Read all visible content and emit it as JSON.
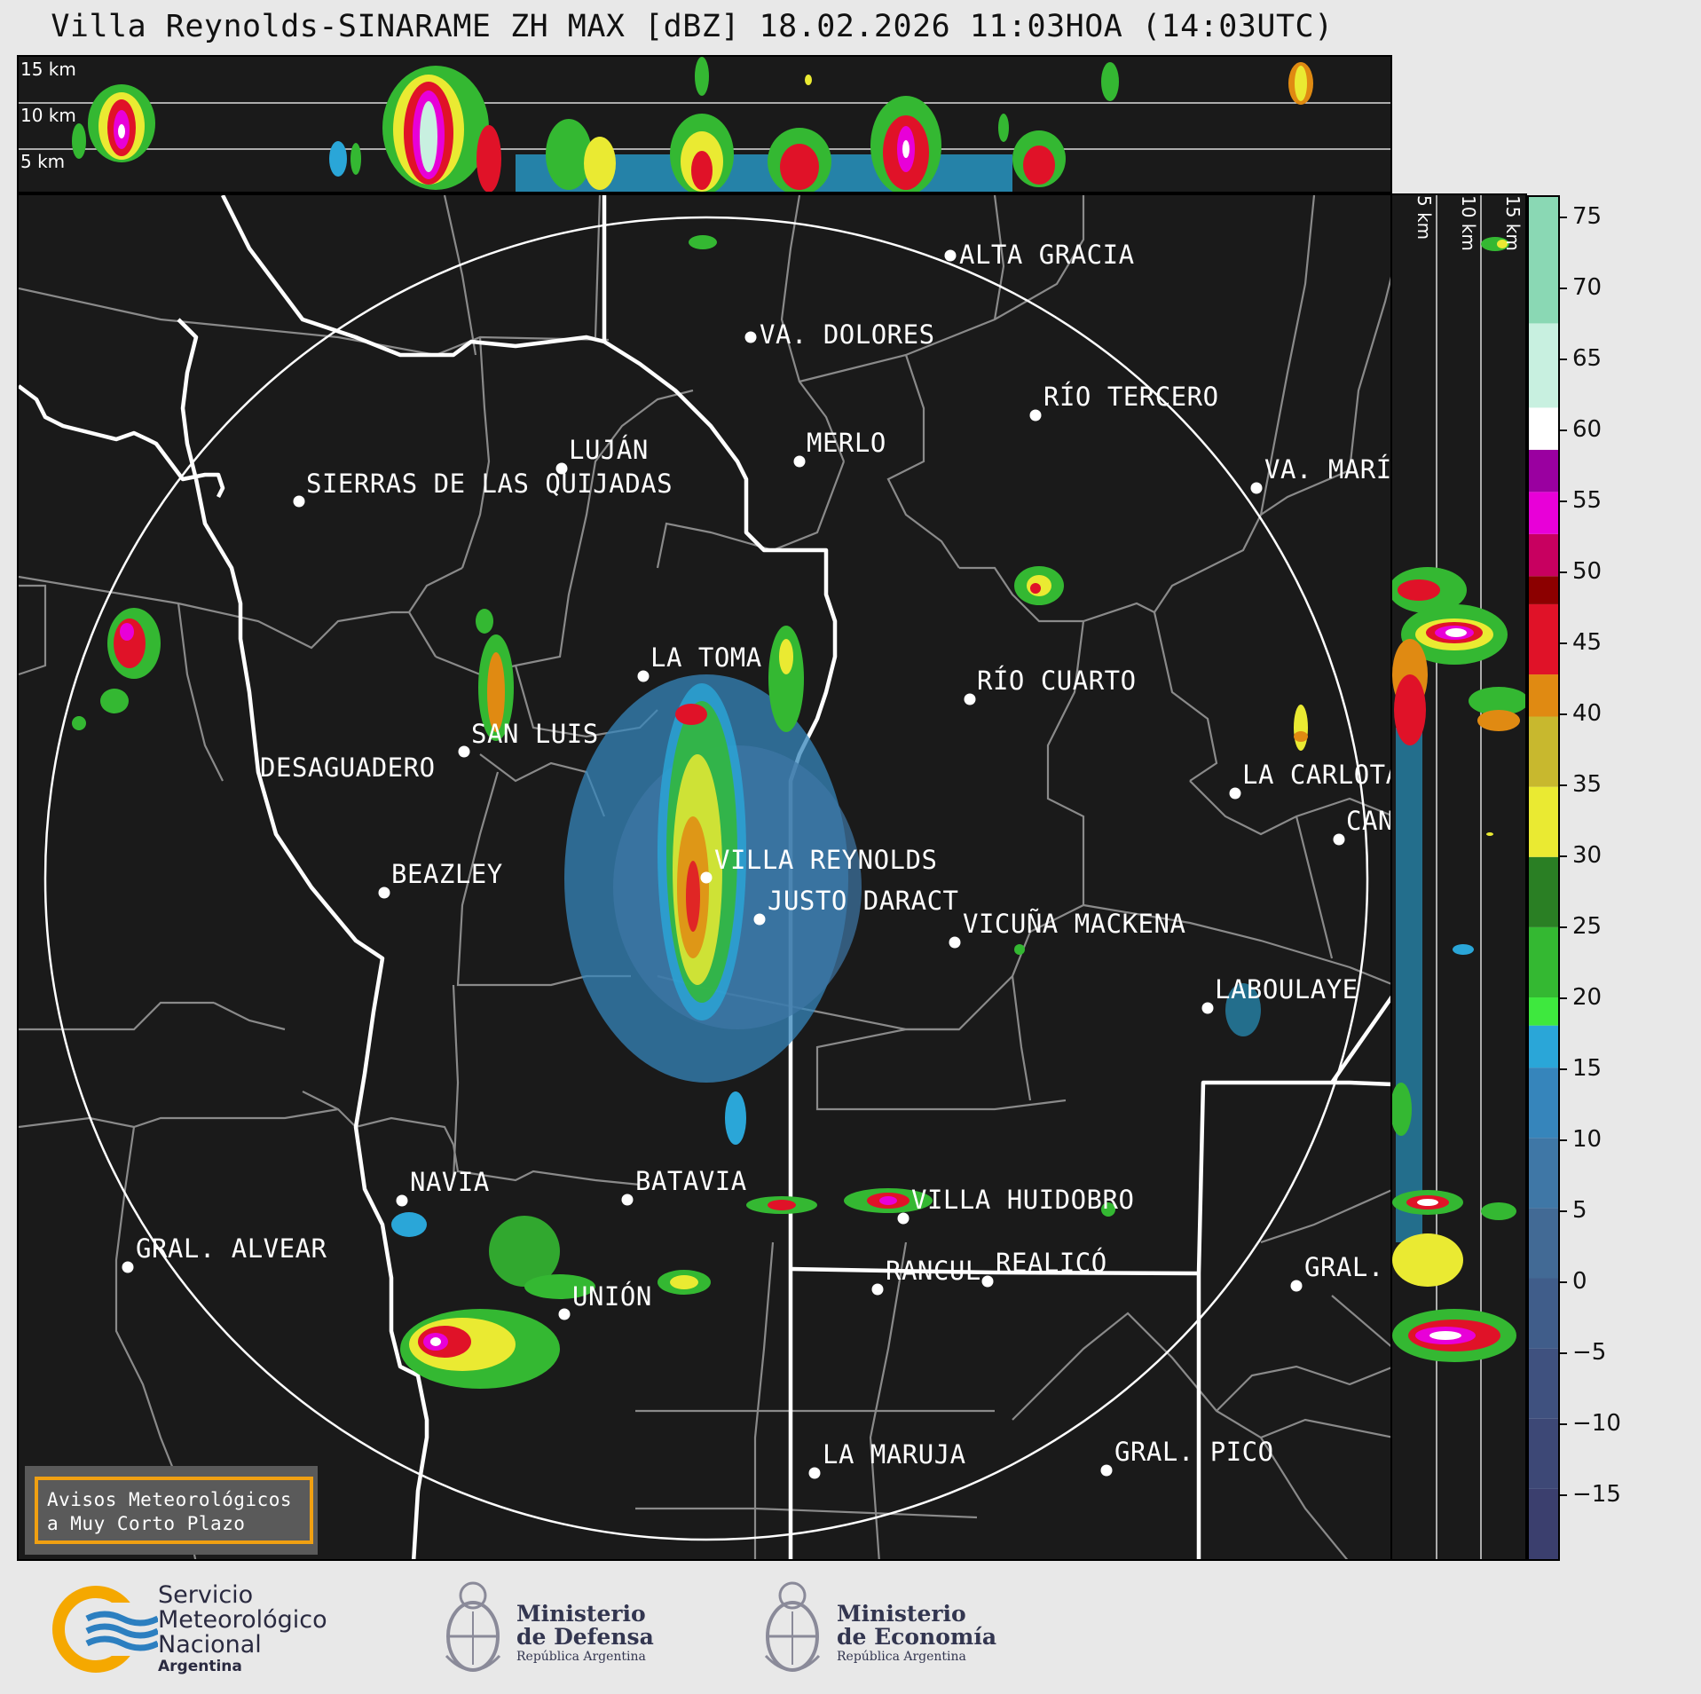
{
  "title": "Villa Reynolds-SINARAME ZH MAX [dBZ] 18.02.2026 11:03HOA (14:03UTC)",
  "top_strip": {
    "altitude_labels": [
      "15 km",
      "10 km",
      "5 km"
    ]
  },
  "side_strip": {
    "altitude_labels": [
      "5 km",
      "10 km",
      "15 km"
    ]
  },
  "colorbar": {
    "unit": "dBZ",
    "ticks": [
      "75",
      "70",
      "65",
      "60",
      "55",
      "50",
      "45",
      "40",
      "35",
      "30",
      "25",
      "20",
      "15",
      "10",
      "5",
      "0",
      "−5",
      "−10",
      "−15"
    ],
    "min": -20,
    "max": 77,
    "bands": [
      {
        "from": -20,
        "to": -15,
        "color": "#3b3f6e"
      },
      {
        "from": -15,
        "to": -10,
        "color": "#3d4876"
      },
      {
        "from": -10,
        "to": -5,
        "color": "#3f517f"
      },
      {
        "from": -5,
        "to": 0,
        "color": "#405d8a"
      },
      {
        "from": 0,
        "to": 5,
        "color": "#426a95"
      },
      {
        "from": 5,
        "to": 10,
        "color": "#3f77a6"
      },
      {
        "from": 10,
        "to": 15,
        "color": "#3685bb"
      },
      {
        "from": 15,
        "to": 18,
        "color": "#2aa6d8"
      },
      {
        "from": 18,
        "to": 20,
        "color": "#3ee83e"
      },
      {
        "from": 20,
        "to": 25,
        "color": "#34b832"
      },
      {
        "from": 25,
        "to": 30,
        "color": "#2a7f24"
      },
      {
        "from": 30,
        "to": 35,
        "color": "#eaea32"
      },
      {
        "from": 35,
        "to": 40,
        "color": "#c8b82e"
      },
      {
        "from": 40,
        "to": 43,
        "color": "#e08a12"
      },
      {
        "from": 43,
        "to": 48,
        "color": "#e01228"
      },
      {
        "from": 48,
        "to": 50,
        "color": "#8c0000"
      },
      {
        "from": 50,
        "to": 53,
        "color": "#c80060"
      },
      {
        "from": 53,
        "to": 56,
        "color": "#e800d8"
      },
      {
        "from": 56,
        "to": 59,
        "color": "#9a00a0"
      },
      {
        "from": 59,
        "to": 62,
        "color": "#ffffff"
      },
      {
        "from": 62,
        "to": 68,
        "color": "#c8f0e0"
      },
      {
        "from": 68,
        "to": 77,
        "color": "#8ad8b4"
      }
    ]
  },
  "cities": [
    {
      "name": "ALTA GRACIA"
    },
    {
      "name": "VA. DOLORES"
    },
    {
      "name": "RÍO TERCERO"
    },
    {
      "name": "LUJÁN"
    },
    {
      "name": "MERLO"
    },
    {
      "name": "VA. MARÍ"
    },
    {
      "name": "SIERRAS DE LAS QUIJADAS"
    },
    {
      "name": "LA TOMA"
    },
    {
      "name": "RÍO CUARTO"
    },
    {
      "name": "SAN LUIS"
    },
    {
      "name": "DESAGUADERO"
    },
    {
      "name": "LA CARLOTA"
    },
    {
      "name": "CAN"
    },
    {
      "name": "VILLA REYNOLDS"
    },
    {
      "name": "BEAZLEY"
    },
    {
      "name": "JUSTO DARACT"
    },
    {
      "name": "VICUÑA MACKENA"
    },
    {
      "name": "LABOULAYE"
    },
    {
      "name": "NAVIA"
    },
    {
      "name": "BATAVIA"
    },
    {
      "name": "VILLA HUIDOBRO"
    },
    {
      "name": "GRAL. ALVEAR"
    },
    {
      "name": "RANCUL"
    },
    {
      "name": "REALICÓ"
    },
    {
      "name": "GRAL."
    },
    {
      "name": "UNIÓN"
    },
    {
      "name": "LA MARUJA"
    },
    {
      "name": "GRAL. PICO"
    }
  ],
  "avisos": {
    "line1": "Avisos Meteorológicos",
    "line2": "a Muy Corto Plazo"
  },
  "footer": {
    "smn": {
      "line1": "Servicio",
      "line2": "Meteorológico",
      "line3": "Nacional",
      "line4": "Argentina"
    },
    "defensa": {
      "line1": "Ministerio",
      "line2": "de Defensa",
      "line3": "República Argentina"
    },
    "economia": {
      "line1": "Ministerio",
      "line2": "de Economía",
      "line3": "República Argentina"
    }
  }
}
